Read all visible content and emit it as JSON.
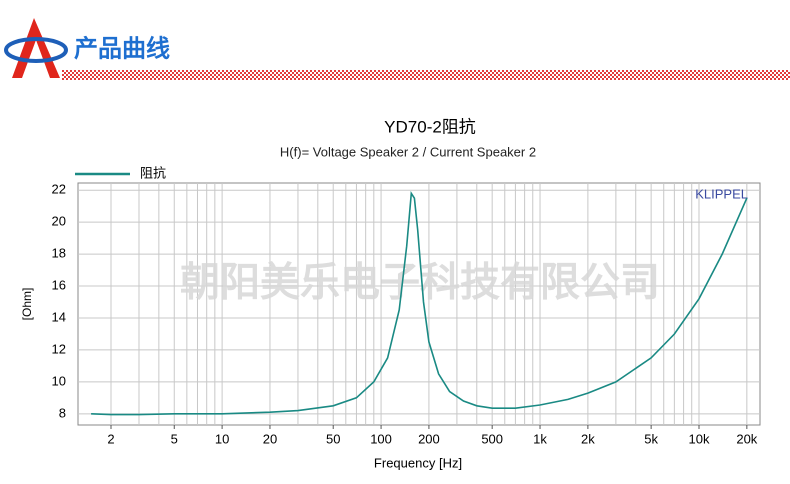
{
  "header": {
    "title": "产品曲线"
  },
  "watermark": "朝阳美乐电子科技有限公司",
  "chart_data": {
    "type": "line",
    "title": "YD70-2阻抗",
    "subtitle": "H(f)= Voltage Speaker 2 / Current Speaker 2",
    "annotation": "KLIPPEL",
    "x_label": "Frequency [Hz]",
    "y_label": "[Ohm]",
    "log_x": true,
    "grid": true,
    "legend": "top-left",
    "x": [
      1.5,
      2,
      3,
      5,
      10,
      20,
      30,
      50,
      70,
      90,
      110,
      130,
      145,
      155,
      162,
      170,
      185,
      200,
      230,
      270,
      330,
      400,
      500,
      700,
      1000,
      1500,
      2000,
      3000,
      5000,
      7000,
      10000,
      14000,
      20000
    ],
    "series": [
      {
        "name": "阻抗",
        "color": "#1a8a84",
        "values": [
          8.0,
          7.95,
          7.95,
          8.0,
          8.0,
          8.1,
          8.2,
          8.5,
          9.0,
          10.0,
          11.5,
          14.5,
          18.5,
          21.8,
          21.5,
          19.5,
          15.0,
          12.5,
          10.5,
          9.4,
          8.8,
          8.5,
          8.35,
          8.35,
          8.55,
          8.9,
          9.3,
          10.0,
          11.5,
          13.0,
          15.2,
          18.0,
          21.5
        ]
      }
    ],
    "xlim": [
      1.24,
      24200
    ],
    "xticks": [
      2,
      5,
      10,
      20,
      50,
      100,
      200,
      500,
      {
        "value": 1000,
        "label": "1k"
      },
      {
        "value": 2000,
        "label": "2k"
      },
      {
        "value": 5000,
        "label": "5k"
      },
      {
        "value": 10000,
        "label": "10k"
      },
      {
        "value": 20000,
        "label": "20k"
      }
    ],
    "xgrid": [
      2,
      3,
      4,
      5,
      6,
      7,
      8,
      9,
      10,
      20,
      30,
      40,
      50,
      60,
      70,
      80,
      90,
      100,
      200,
      300,
      400,
      500,
      600,
      700,
      800,
      900,
      1000,
      2000,
      3000,
      4000,
      5000,
      6000,
      7000,
      8000,
      9000,
      10000,
      20000
    ],
    "ylim": [
      7.3,
      22.45
    ],
    "yticks": [
      8,
      10,
      12,
      14,
      16,
      18,
      20,
      22
    ]
  }
}
